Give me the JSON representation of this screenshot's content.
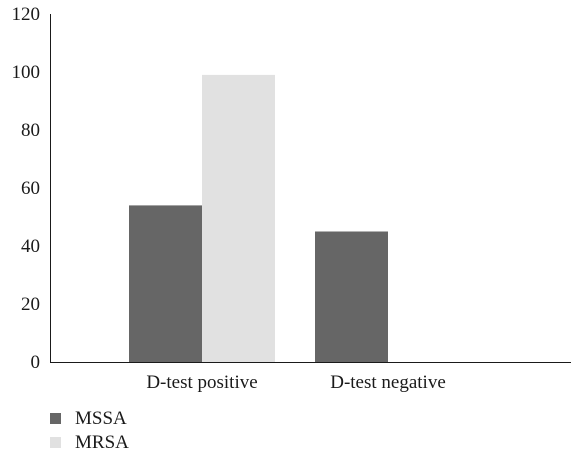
{
  "chart_data": {
    "type": "bar",
    "title": "",
    "xlabel": "",
    "ylabel": "",
    "categories": [
      "D-test positive",
      "D-test negative"
    ],
    "series": [
      {
        "name": "MSSA",
        "values": [
          54,
          45
        ],
        "color": "#666666"
      },
      {
        "name": "MRSA",
        "values": [
          99,
          0
        ],
        "color": "#e1e1e1"
      }
    ],
    "ylim": [
      0,
      120
    ],
    "yticks": [
      0,
      20,
      40,
      60,
      80,
      100,
      120
    ],
    "grid": false,
    "legend_position": "bottom-left"
  }
}
